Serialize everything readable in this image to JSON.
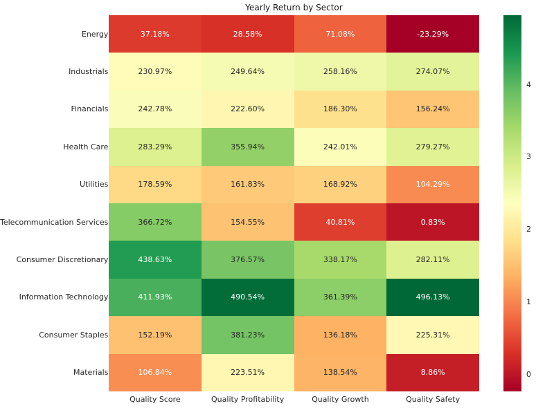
{
  "chart_data": {
    "type": "heatmap",
    "title": "Yearly Return by Sector",
    "rows": [
      "Energy",
      "Industrials",
      "Financials",
      "Health Care",
      "Utilities",
      "Telecommunication Services",
      "Consumer Discretionary",
      "Information Technology",
      "Consumer Staples",
      "Materials"
    ],
    "columns": [
      "Quality Score",
      "Quality Profitability",
      "Quality Growth",
      "Quality Safety"
    ],
    "values_pct": [
      [
        37.18,
        28.58,
        71.08,
        -23.29
      ],
      [
        230.97,
        249.64,
        258.16,
        274.07
      ],
      [
        242.78,
        222.6,
        186.3,
        156.24
      ],
      [
        283.29,
        355.94,
        242.01,
        279.27
      ],
      [
        178.59,
        161.83,
        168.92,
        104.29
      ],
      [
        366.72,
        154.55,
        40.81,
        0.83
      ],
      [
        438.63,
        376.57,
        338.17,
        282.11
      ],
      [
        411.93,
        490.54,
        361.39,
        496.13
      ],
      [
        152.19,
        381.23,
        136.18,
        225.31
      ],
      [
        106.84,
        223.51,
        138.54,
        8.86
      ]
    ],
    "value_suffix": "%",
    "colormap": {
      "name": "RdYlGn",
      "anchors": [
        "#a50026",
        "#d73027",
        "#f46d43",
        "#fdae61",
        "#fee08b",
        "#ffffbf",
        "#d9ef8b",
        "#a6d96a",
        "#66bd63",
        "#1a9850",
        "#006837"
      ]
    },
    "colorbar": {
      "vmin": -0.2329,
      "vmax": 4.9613,
      "ticks": [
        0,
        1,
        2,
        3,
        4
      ],
      "position": "right"
    },
    "annotation_colors": {
      "dark": "#262626",
      "light": "#ffffff"
    },
    "background": "#ffffff",
    "grid": false,
    "legend": false
  }
}
